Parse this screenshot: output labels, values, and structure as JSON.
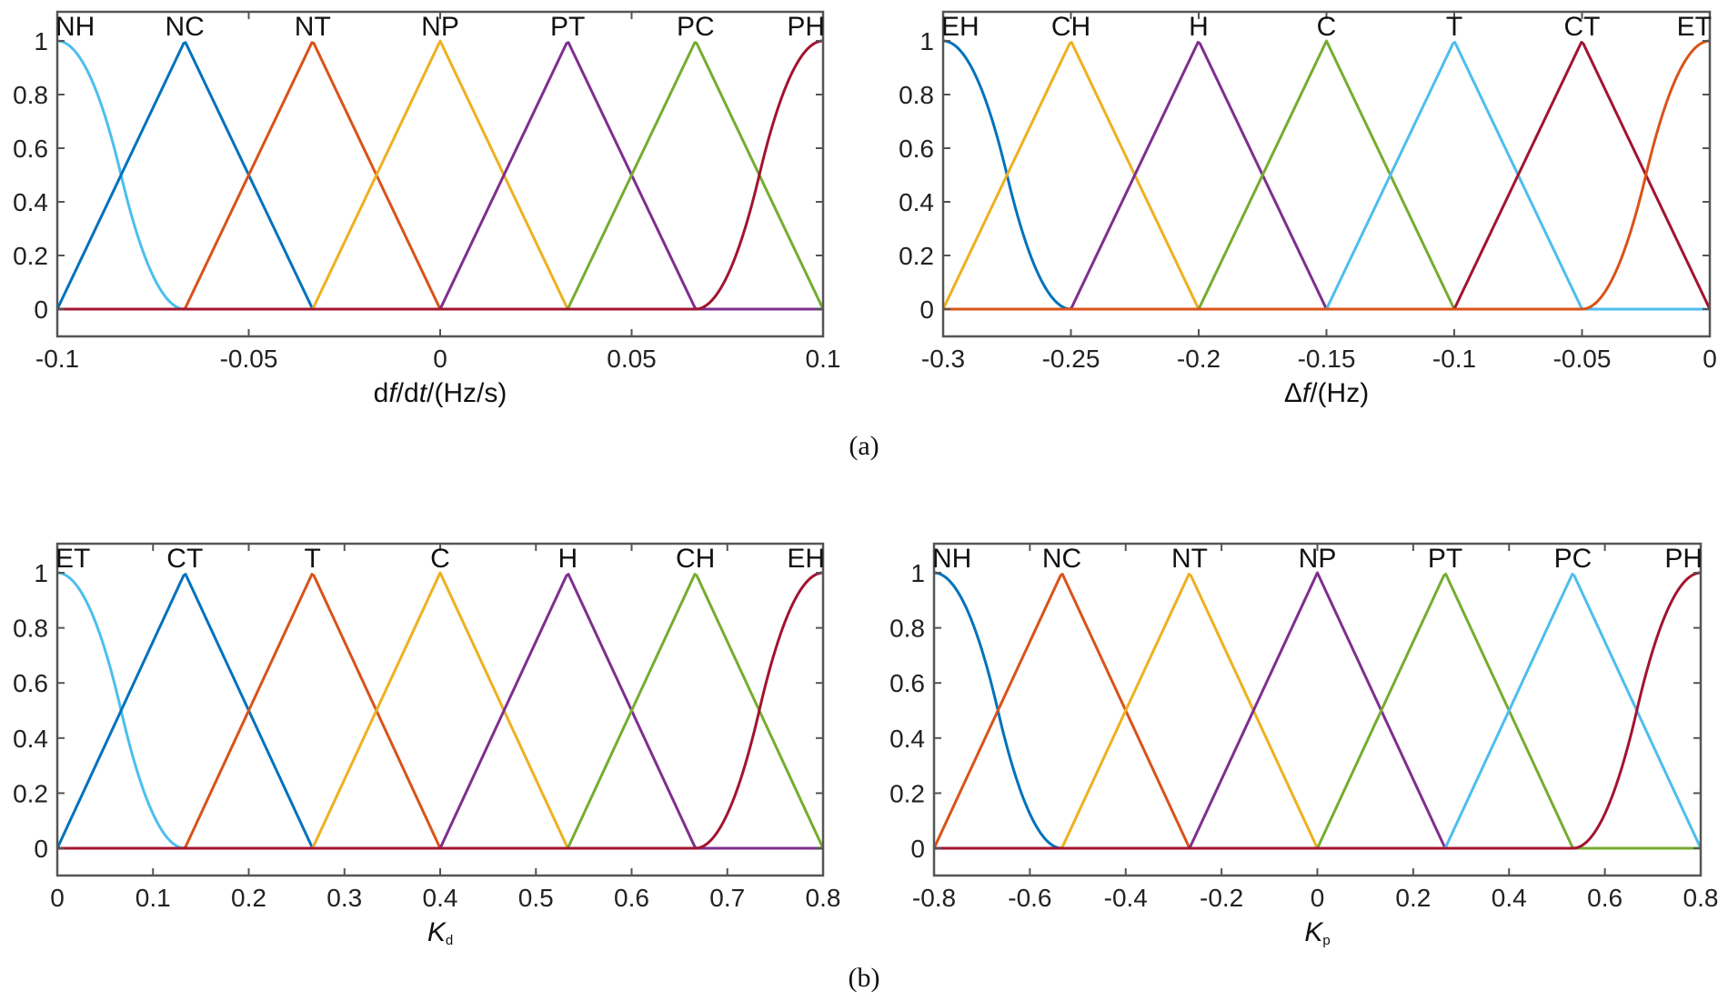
{
  "captions": [
    "(a)",
    "(b)"
  ],
  "chart_data": [
    {
      "type": "line",
      "xlabel": {
        "pre": "d",
        "i1": "f",
        "mid": "/d",
        "i2": "t",
        "post": "/(Hz/s)"
      },
      "xlim": [
        -0.1,
        0.1
      ],
      "ylim": [
        0,
        1
      ],
      "xticks": [
        -0.1,
        -0.05,
        0,
        0.05,
        0.1
      ],
      "xtick_labels": [
        "-0.1",
        "-0.05",
        "0",
        "0.05",
        "0.1"
      ],
      "yticks": [
        0,
        0.2,
        0.4,
        0.6,
        0.8,
        1
      ],
      "ytick_labels": [
        "0",
        "0.2",
        "0.4",
        "0.6",
        "0.8",
        "1"
      ],
      "series": [
        {
          "name": "NH",
          "shape": "zmf",
          "params": [
            -0.1,
            -0.0667
          ],
          "color": "#4DBEEE"
        },
        {
          "name": "NC",
          "shape": "trimf",
          "params": [
            -0.1,
            -0.0667,
            -0.0333
          ],
          "color": "#0072BD"
        },
        {
          "name": "NT",
          "shape": "trimf",
          "params": [
            -0.0667,
            -0.0333,
            0
          ],
          "color": "#D95319"
        },
        {
          "name": "NP",
          "shape": "trimf",
          "params": [
            -0.0333,
            0,
            0.0333
          ],
          "color": "#EDB120"
        },
        {
          "name": "PT",
          "shape": "trimf",
          "params": [
            0,
            0.0333,
            0.0667
          ],
          "color": "#7E2F8E"
        },
        {
          "name": "PC",
          "shape": "trimf",
          "params": [
            0.0333,
            0.0667,
            0.1
          ],
          "color": "#77AC30"
        },
        {
          "name": "PH",
          "shape": "smf",
          "params": [
            0.0667,
            0.1
          ],
          "color": "#A2142F"
        }
      ]
    },
    {
      "type": "line",
      "xlabel": {
        "pre": "Δ",
        "i1": "f",
        "mid": "",
        "i2": "",
        "post": "/(Hz)"
      },
      "xlim": [
        -0.3,
        0
      ],
      "ylim": [
        0,
        1
      ],
      "xticks": [
        -0.3,
        -0.25,
        -0.2,
        -0.15,
        -0.1,
        -0.05,
        0
      ],
      "xtick_labels": [
        "-0.3",
        "-0.25",
        "-0.2",
        "-0.15",
        "-0.1",
        "-0.05",
        "0"
      ],
      "yticks": [
        0,
        0.2,
        0.4,
        0.6,
        0.8,
        1
      ],
      "ytick_labels": [
        "0",
        "0.2",
        "0.4",
        "0.6",
        "0.8",
        "1"
      ],
      "series": [
        {
          "name": "EH",
          "shape": "zmf",
          "params": [
            -0.3,
            -0.25
          ],
          "color": "#0072BD"
        },
        {
          "name": "CH",
          "shape": "trimf",
          "params": [
            -0.3,
            -0.25,
            -0.2
          ],
          "color": "#EDB120"
        },
        {
          "name": "H",
          "shape": "trimf",
          "params": [
            -0.25,
            -0.2,
            -0.15
          ],
          "color": "#7E2F8E"
        },
        {
          "name": "C",
          "shape": "trimf",
          "params": [
            -0.2,
            -0.15,
            -0.1
          ],
          "color": "#77AC30"
        },
        {
          "name": "T",
          "shape": "trimf",
          "params": [
            -0.15,
            -0.1,
            -0.05
          ],
          "color": "#4DBEEE"
        },
        {
          "name": "CT",
          "shape": "trimf",
          "params": [
            -0.1,
            -0.05,
            0
          ],
          "color": "#A2142F"
        },
        {
          "name": "ET",
          "shape": "smf",
          "params": [
            -0.05,
            0
          ],
          "color": "#D95319"
        }
      ]
    },
    {
      "type": "line",
      "xlabel": {
        "pre": "",
        "i1": "K",
        "sub": "d",
        "post": ""
      },
      "xlim": [
        0,
        0.8
      ],
      "ylim": [
        0,
        1
      ],
      "xticks": [
        0,
        0.1,
        0.2,
        0.3,
        0.4,
        0.5,
        0.6,
        0.7,
        0.8
      ],
      "xtick_labels": [
        "0",
        "0.1",
        "0.2",
        "0.3",
        "0.4",
        "0.5",
        "0.6",
        "0.7",
        "0.8"
      ],
      "yticks": [
        0,
        0.2,
        0.4,
        0.6,
        0.8,
        1
      ],
      "ytick_labels": [
        "0",
        "0.2",
        "0.4",
        "0.6",
        "0.8",
        "1"
      ],
      "series": [
        {
          "name": "ET",
          "shape": "zmf",
          "params": [
            0,
            0.1333
          ],
          "color": "#4DBEEE"
        },
        {
          "name": "CT",
          "shape": "trimf",
          "params": [
            0,
            0.1333,
            0.2667
          ],
          "color": "#0072BD"
        },
        {
          "name": "T",
          "shape": "trimf",
          "params": [
            0.1333,
            0.2667,
            0.4
          ],
          "color": "#D95319"
        },
        {
          "name": "C",
          "shape": "trimf",
          "params": [
            0.2667,
            0.4,
            0.5333
          ],
          "color": "#EDB120"
        },
        {
          "name": "H",
          "shape": "trimf",
          "params": [
            0.4,
            0.5333,
            0.6667
          ],
          "color": "#7E2F8E"
        },
        {
          "name": "CH",
          "shape": "trimf",
          "params": [
            0.5333,
            0.6667,
            0.8
          ],
          "color": "#77AC30"
        },
        {
          "name": "EH",
          "shape": "smf",
          "params": [
            0.6667,
            0.8
          ],
          "color": "#A2142F"
        }
      ]
    },
    {
      "type": "line",
      "xlabel": {
        "pre": "",
        "i1": "K",
        "sub": "p",
        "post": ""
      },
      "xlim": [
        -0.8,
        0.8
      ],
      "ylim": [
        0,
        1
      ],
      "xticks": [
        -0.8,
        -0.6,
        -0.4,
        -0.2,
        0,
        0.2,
        0.4,
        0.6,
        0.8
      ],
      "xtick_labels": [
        "-0.8",
        "-0.6",
        "-0.4",
        "-0.2",
        "0",
        "0.2",
        "0.4",
        "0.6",
        "0.8"
      ],
      "yticks": [
        0,
        0.2,
        0.4,
        0.6,
        0.8,
        1
      ],
      "ytick_labels": [
        "0",
        "0.2",
        "0.4",
        "0.6",
        "0.8",
        "1"
      ],
      "series": [
        {
          "name": "NH",
          "shape": "zmf",
          "params": [
            -0.8,
            -0.5333
          ],
          "color": "#0072BD"
        },
        {
          "name": "NC",
          "shape": "trimf",
          "params": [
            -0.8,
            -0.5333,
            -0.2667
          ],
          "color": "#D95319"
        },
        {
          "name": "NT",
          "shape": "trimf",
          "params": [
            -0.5333,
            -0.2667,
            0
          ],
          "color": "#EDB120"
        },
        {
          "name": "NP",
          "shape": "trimf",
          "params": [
            -0.2667,
            0,
            0.2667
          ],
          "color": "#7E2F8E"
        },
        {
          "name": "PT",
          "shape": "trimf",
          "params": [
            0,
            0.2667,
            0.5333
          ],
          "color": "#77AC30"
        },
        {
          "name": "PC",
          "shape": "trimf",
          "params": [
            0.2667,
            0.5333,
            0.8
          ],
          "color": "#4DBEEE"
        },
        {
          "name": "PH",
          "shape": "smf",
          "params": [
            0.5333,
            0.8
          ],
          "color": "#A2142F"
        }
      ]
    }
  ]
}
